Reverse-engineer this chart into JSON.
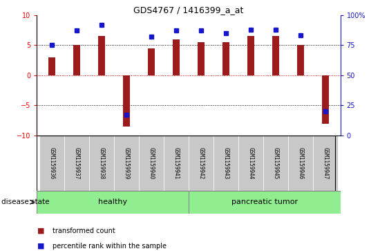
{
  "title": "GDS4767 / 1416399_a_at",
  "samples": [
    "GSM1159936",
    "GSM1159937",
    "GSM1159938",
    "GSM1159939",
    "GSM1159940",
    "GSM1159941",
    "GSM1159942",
    "GSM1159943",
    "GSM1159944",
    "GSM1159945",
    "GSM1159946",
    "GSM1159947"
  ],
  "transformed_count": [
    3.0,
    5.0,
    6.5,
    -8.5,
    4.5,
    6.0,
    5.5,
    5.5,
    6.5,
    6.5,
    5.0,
    -8.0
  ],
  "percentile_rank": [
    75,
    87,
    92,
    17,
    82,
    87,
    87,
    85,
    88,
    88,
    83,
    20
  ],
  "healthy_count": 6,
  "tumor_count": 6,
  "bar_color": "#9B1C1C",
  "dot_color": "#1515CC",
  "healthy_color": "#90EE90",
  "tumor_color": "#90EE90",
  "ylim_left": [
    -10,
    10
  ],
  "ylim_right": [
    0,
    100
  ],
  "yticks_left": [
    -10,
    -5,
    0,
    5,
    10
  ],
  "yticks_right": [
    0,
    25,
    50,
    75,
    100
  ],
  "ytick_right_labels": [
    "0",
    "25",
    "50",
    "75",
    "100%"
  ],
  "legend_red": "transformed count",
  "legend_blue": "percentile rank within the sample",
  "disease_label": "disease state",
  "healthy_label": "healthy",
  "tumor_label": "pancreatic tumor",
  "tick_label_bg": "#C8C8C8",
  "bar_width": 0.3
}
